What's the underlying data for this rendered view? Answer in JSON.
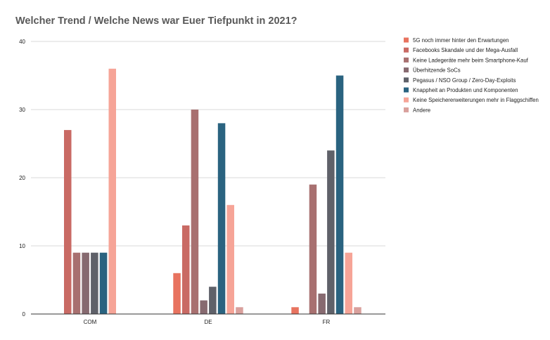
{
  "chart_data": {
    "type": "bar",
    "title": "Welcher Trend / Welche News war Euer Tiefpunkt in 2021?",
    "xlabel": "",
    "ylabel": "",
    "ylim": [
      0,
      40
    ],
    "yticks": [
      0,
      10,
      20,
      30,
      40
    ],
    "grid": true,
    "legend_position": "right",
    "categories": [
      "COM",
      "DE",
      "FR"
    ],
    "series": [
      {
        "name": "5G noch immer hinter den Erwartungen",
        "color": "#e8735f",
        "values": [
          0,
          6,
          1
        ]
      },
      {
        "name": "Facebooks Skandale und der Mega-Ausfall",
        "color": "#c96a64",
        "values": [
          27,
          13,
          0
        ]
      },
      {
        "name": "Keine Ladegeräte mehr beim Smartphone-Kauf",
        "color": "#a87070",
        "values": [
          9,
          30,
          19
        ]
      },
      {
        "name": "Überhitzende SoCs",
        "color": "#876a70",
        "values": [
          9,
          2,
          3
        ]
      },
      {
        "name": "Pegasus / NSO Group / Zero-Day-Exploits",
        "color": "#5f6169",
        "values": [
          9,
          4,
          24
        ]
      },
      {
        "name": "Knappheit an Produkten und Komponenten",
        "color": "#2a6380",
        "values": [
          9,
          28,
          35
        ]
      },
      {
        "name": "Keine Speichererweiterungen mehr in Flaggschiffen",
        "color": "#f6a497",
        "values": [
          36,
          16,
          9
        ]
      },
      {
        "name": "Andere",
        "color": "#d9a09c",
        "values": [
          0,
          1,
          1
        ]
      }
    ]
  }
}
